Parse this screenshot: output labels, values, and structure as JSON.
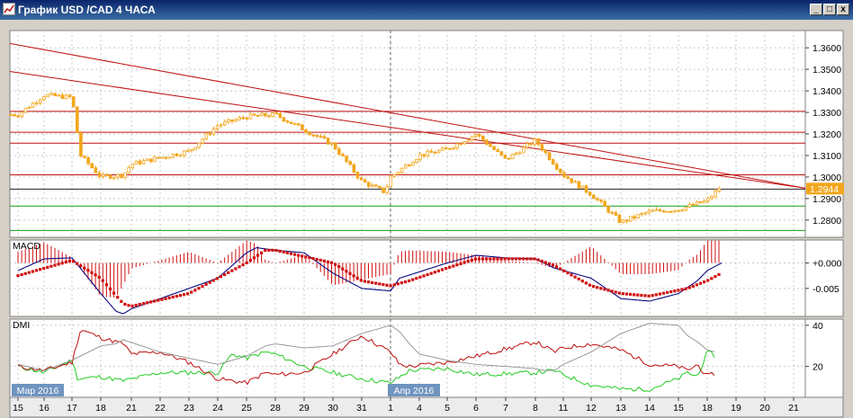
{
  "window": {
    "title": "График USD /CAD  4 ЧАСА",
    "minimize_glyph": "_",
    "maximize_glyph": "□",
    "close_glyph": "x"
  },
  "colors": {
    "background": "#ffffff",
    "grid": "#c8c8c8",
    "candle": "#f2a61d",
    "resistance": "#c01010",
    "support": "#10a010",
    "price_line": "#202020",
    "macd_line": "#0a0a80",
    "macd_signal": "#d01010",
    "macd_hist": "#d01010",
    "dmi_plus": "#22cc22",
    "dmi_minus": "#c01010",
    "adx": "#909090",
    "price_tag": "#f2a61d",
    "date_tag": "#6f94bf"
  },
  "chart_data": [
    {
      "type": "candlestick",
      "panel": "price",
      "title": "",
      "ylim": [
        1.272,
        1.368
      ],
      "y_ticks": [
        "1.3600",
        "1.3500",
        "1.3400",
        "1.3300",
        "1.3200",
        "1.3100",
        "1.3000",
        "1.2900",
        "1.2800"
      ],
      "y_tick_values": [
        1.36,
        1.35,
        1.34,
        1.33,
        1.32,
        1.31,
        1.3,
        1.29,
        1.28
      ],
      "current_price": 1.2944,
      "current_price_label": "1.2944",
      "horizontal_lines": {
        "resistance": [
          1.3305,
          1.3208,
          1.3157,
          1.301
        ],
        "support": [
          1.2865,
          1.2752
        ],
        "black": [
          1.2944
        ]
      },
      "trendlines": [
        {
          "from": [
            "15 Mar",
            1.362
          ],
          "to": [
            "21 Apr",
            1.2948
          ]
        },
        {
          "from": [
            "15 Mar",
            1.349
          ],
          "to": [
            "21 Apr",
            1.2948
          ]
        }
      ],
      "anchors": [
        [
          "15",
          1.329
        ],
        [
          "16",
          1.338
        ],
        [
          "17",
          1.337
        ],
        [
          "17.3",
          1.31
        ],
        [
          "18",
          1.3
        ],
        [
          "20",
          1.301
        ],
        [
          "21",
          1.306
        ],
        [
          "22",
          1.309
        ],
        [
          "23",
          1.312
        ],
        [
          "24",
          1.324
        ],
        [
          "25",
          1.328
        ],
        [
          "28",
          1.329
        ],
        [
          "29",
          1.322
        ],
        [
          "30",
          1.315
        ],
        [
          "31",
          1.298
        ],
        [
          "31.8",
          1.293
        ],
        [
          "1",
          1.3
        ],
        [
          "4",
          1.31
        ],
        [
          "5",
          1.313
        ],
        [
          "6",
          1.32
        ],
        [
          "7",
          1.308
        ],
        [
          "8",
          1.317
        ],
        [
          "11",
          1.301
        ],
        [
          "12",
          1.292
        ],
        [
          "13",
          1.279
        ],
        [
          "14",
          1.284
        ],
        [
          "15",
          1.285
        ],
        [
          "18",
          1.289
        ],
        [
          "18.5",
          1.296
        ]
      ]
    },
    {
      "type": "line",
      "panel": "macd",
      "title": "MACD",
      "ylim": [
        -0.0105,
        0.0045
      ],
      "y_ticks": [
        "+0.000",
        "-0.005"
      ],
      "y_tick_values": [
        0.0,
        -0.005
      ],
      "series": [
        {
          "role": "macd",
          "anchors": [
            [
              "15",
              -0.0015
            ],
            [
              "16",
              0.0008
            ],
            [
              "17",
              0.001
            ],
            [
              "18",
              -0.006
            ],
            [
              "19",
              -0.0095
            ],
            [
              "20",
              -0.01
            ],
            [
              "21",
              -0.009
            ],
            [
              "22",
              -0.007
            ],
            [
              "24",
              -0.003
            ],
            [
              "25",
              0.002
            ],
            [
              "26",
              0.003
            ],
            [
              "28",
              0.0025
            ],
            [
              "29",
              0.002
            ],
            [
              "30",
              -0.002
            ],
            [
              "31",
              -0.005
            ],
            [
              "1",
              -0.0055
            ],
            [
              "2",
              -0.003
            ],
            [
              "5",
              0.0
            ],
            [
              "6",
              0.0015
            ],
            [
              "7",
              0.001
            ],
            [
              "8",
              0.0008
            ],
            [
              "10",
              -0.001
            ],
            [
              "12",
              -0.003
            ],
            [
              "13",
              -0.007
            ],
            [
              "14",
              -0.0075
            ],
            [
              "15",
              -0.006
            ],
            [
              "17",
              -0.0035
            ],
            [
              "18",
              -0.0015
            ],
            [
              "18.5",
              0.0
            ]
          ]
        },
        {
          "role": "signal",
          "anchors": [
            [
              "15",
              -0.0025
            ],
            [
              "17",
              0.0005
            ],
            [
              "18",
              -0.003
            ],
            [
              "20",
              -0.008
            ],
            [
              "21",
              -0.0085
            ],
            [
              "23",
              -0.006
            ],
            [
              "25",
              0.0
            ],
            [
              "27",
              0.0025
            ],
            [
              "28",
              0.0025
            ],
            [
              "30",
              0.0
            ],
            [
              "31",
              -0.0035
            ],
            [
              "1",
              -0.0045
            ],
            [
              "3",
              -0.0035
            ],
            [
              "5",
              -0.001
            ],
            [
              "6",
              0.0008
            ],
            [
              "8",
              0.0008
            ],
            [
              "10",
              -0.0005
            ],
            [
              "12",
              -0.0045
            ],
            [
              "13",
              -0.006
            ],
            [
              "14",
              -0.0065
            ],
            [
              "16",
              -0.005
            ],
            [
              "18",
              -0.0035
            ],
            [
              "18.5",
              -0.002
            ]
          ]
        }
      ]
    },
    {
      "type": "line",
      "panel": "dmi",
      "title": "DMI",
      "ylim": [
        5,
        43
      ],
      "y_ticks": [
        "40",
        "20"
      ],
      "y_tick_values": [
        40,
        20
      ],
      "series": [
        {
          "role": "plus_di",
          "anchors": [
            [
              "15",
              20
            ],
            [
              "16",
              17
            ],
            [
              "17",
              23
            ],
            [
              "17.2",
              14
            ],
            [
              "18",
              15
            ],
            [
              "20",
              13
            ],
            [
              "22",
              17
            ],
            [
              "24",
              17
            ],
            [
              "24.5",
              26
            ],
            [
              "25",
              24
            ],
            [
              "27",
              27
            ],
            [
              "28",
              26
            ],
            [
              "29",
              20
            ],
            [
              "30",
              17
            ],
            [
              "31",
              14
            ],
            [
              "1",
              12
            ],
            [
              "3",
              18
            ],
            [
              "5",
              19
            ],
            [
              "6",
              16
            ],
            [
              "8",
              17
            ],
            [
              "10",
              18
            ],
            [
              "11",
              16
            ],
            [
              "12",
              11
            ],
            [
              "13",
              9
            ],
            [
              "14",
              9
            ],
            [
              "15",
              14
            ],
            [
              "16",
              17
            ],
            [
              "17",
              15
            ],
            [
              "18",
              27
            ],
            [
              "18.3",
              25
            ]
          ]
        },
        {
          "role": "minus_di",
          "anchors": [
            [
              "15",
              20
            ],
            [
              "16",
              18
            ],
            [
              "17",
              22
            ],
            [
              "17.3",
              38
            ],
            [
              "18",
              34
            ],
            [
              "20",
              31
            ],
            [
              "21",
              26
            ],
            [
              "22",
              27
            ],
            [
              "23",
              22
            ],
            [
              "24",
              14
            ],
            [
              "25",
              12
            ],
            [
              "27",
              17
            ],
            [
              "28",
              16
            ],
            [
              "29",
              17
            ],
            [
              "30",
              26
            ],
            [
              "31",
              35
            ],
            [
              "1",
              27
            ],
            [
              "2",
              21
            ],
            [
              "3",
              20
            ],
            [
              "5",
              22
            ],
            [
              "6",
              25
            ],
            [
              "8",
              32
            ],
            [
              "10",
              27
            ],
            [
              "11",
              29
            ],
            [
              "12",
              31
            ],
            [
              "13",
              28
            ],
            [
              "14",
              21
            ],
            [
              "15",
              20
            ],
            [
              "16",
              18
            ],
            [
              "17",
              21
            ],
            [
              "18",
              15
            ],
            [
              "18.3",
              17
            ]
          ]
        },
        {
          "role": "adx",
          "anchors": [
            [
              "15",
              21
            ],
            [
              "16",
              18
            ],
            [
              "17",
              23
            ],
            [
              "18",
              30
            ],
            [
              "19",
              31
            ],
            [
              "20",
              33
            ],
            [
              "22",
              27
            ],
            [
              "24",
              21
            ],
            [
              "25",
              25
            ],
            [
              "27",
              30
            ],
            [
              "28",
              31
            ],
            [
              "29",
              29
            ],
            [
              "30",
              30
            ],
            [
              "31",
              36
            ],
            [
              "1",
              40
            ],
            [
              "2",
              37
            ],
            [
              "3",
              31
            ],
            [
              "4",
              26
            ],
            [
              "5",
              23
            ],
            [
              "6",
              21
            ],
            [
              "8",
              19
            ],
            [
              "9",
              18
            ],
            [
              "10",
              18
            ],
            [
              "11",
              21
            ],
            [
              "12",
              27
            ],
            [
              "13",
              36
            ],
            [
              "14",
              41
            ],
            [
              "15",
              40
            ],
            [
              "16",
              35
            ],
            [
              "17",
              32
            ],
            [
              "18",
              28
            ],
            [
              "18.3",
              27
            ]
          ]
        }
      ]
    }
  ],
  "x_axis": {
    "ticks": [
      "15",
      "16",
      "17",
      "18",
      "21",
      "22",
      "23",
      "24",
      "25",
      "28",
      "29",
      "30",
      "31",
      "1",
      "4",
      "5",
      "6",
      "7",
      "8",
      "11",
      "12",
      "13",
      "14",
      "15",
      "18",
      "19",
      "20",
      "21"
    ],
    "month_labels": [
      {
        "label": "Мар 2016",
        "at": "15"
      },
      {
        "label": "Апр 2016",
        "at": "1"
      }
    ]
  }
}
